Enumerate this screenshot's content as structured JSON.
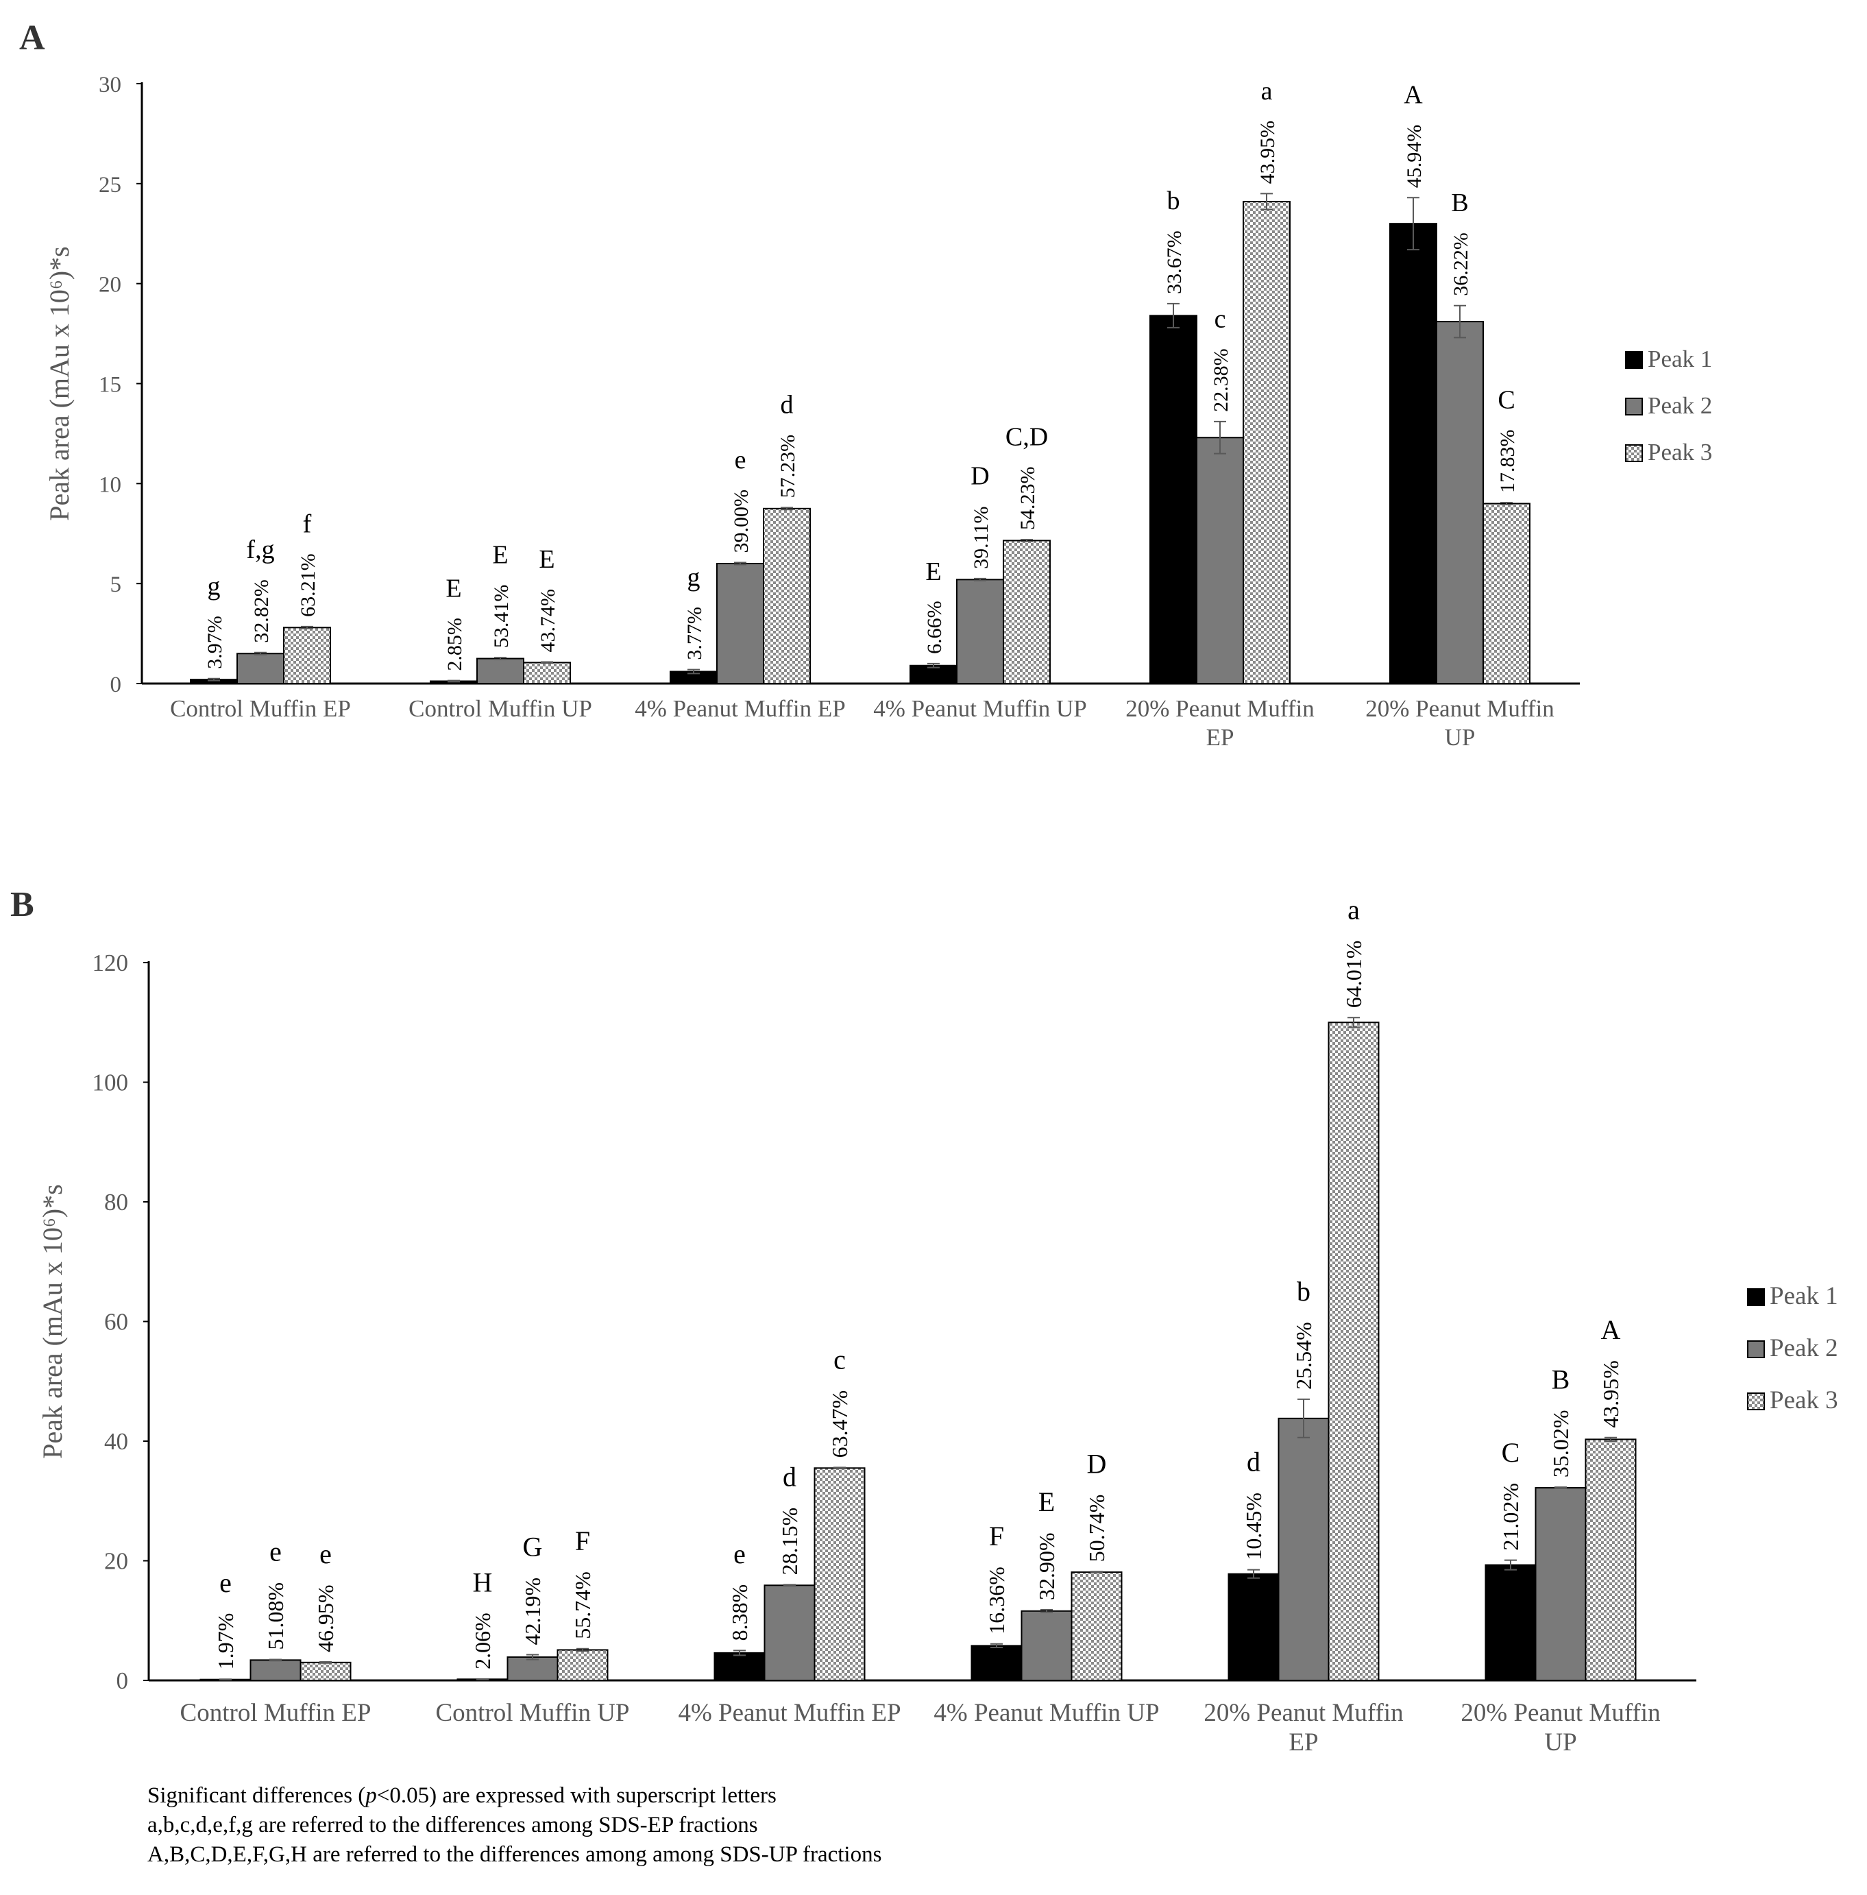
{
  "colors": {
    "peak1": "#000000",
    "peak2": "#7a7a7a",
    "peak3_light": "#ffffff",
    "peak3_dark": "#8a8a8a",
    "axis": "#000000",
    "tick_text": "#595959",
    "error_bar": "#595959"
  },
  "chart_data": [
    {
      "panel": "A",
      "type": "bar",
      "ylabel": "Peak area (mAu x 10⁶)*s",
      "ylim": [
        0,
        30
      ],
      "ytick_step": 5,
      "ytick_labels": [
        "0",
        "5",
        "10",
        "15",
        "20",
        "25",
        "30"
      ],
      "categories": [
        [
          "Control Muffin EP"
        ],
        [
          "Control Muffin UP"
        ],
        [
          "4% Peanut Muffin EP"
        ],
        [
          "4% Peanut Muffin UP"
        ],
        [
          "20% Peanut Muffin",
          "EP"
        ],
        [
          "20% Peanut Muffin",
          "UP"
        ]
      ],
      "legend": [
        "Peak 1",
        "Peak 2",
        "Peak 3"
      ],
      "legend_position": "right",
      "series": [
        {
          "name": "Peak 1",
          "values": [
            0.2,
            0.12,
            0.6,
            0.9,
            18.4,
            23.0
          ],
          "errors": [
            0.05,
            0.03,
            0.1,
            0.1,
            0.6,
            1.3
          ],
          "pct_labels": [
            "3.97%",
            "2.85%",
            "3.77%",
            "6.66%",
            "33.67%",
            "45.94%"
          ],
          "sig_letters": [
            "g",
            "E",
            "g",
            "E",
            "b",
            "A"
          ]
        },
        {
          "name": "Peak 2",
          "values": [
            1.5,
            1.25,
            6.0,
            5.2,
            12.3,
            18.1
          ],
          "errors": [
            0.05,
            0.05,
            0.05,
            0.05,
            0.8,
            0.8
          ],
          "pct_labels": [
            "32.82%",
            "53.41%",
            "39.00%",
            "39.11%",
            "22.38%",
            "36.22%"
          ],
          "sig_letters": [
            "f,g",
            "E",
            "e",
            "D",
            "c",
            "B"
          ]
        },
        {
          "name": "Peak 3",
          "values": [
            2.8,
            1.05,
            8.75,
            7.15,
            24.1,
            9.0
          ],
          "errors": [
            0.05,
            0.03,
            0.05,
            0.05,
            0.4,
            0.05
          ],
          "pct_labels": [
            "63.21%",
            "43.74%",
            "57.23%",
            "54.23%",
            "43.95%",
            "17.83%"
          ],
          "sig_letters": [
            "f",
            "E",
            "d",
            "C,D",
            "a",
            "C"
          ]
        }
      ]
    },
    {
      "panel": "B",
      "type": "bar",
      "ylabel": "Peak area (mAu x 10⁶)*s",
      "ylim": [
        0,
        120
      ],
      "ytick_step": 20,
      "ytick_labels": [
        "0",
        "20",
        "40",
        "60",
        "80",
        "100",
        "120"
      ],
      "categories": [
        [
          "Control Muffin EP"
        ],
        [
          "Control Muffin UP"
        ],
        [
          "4% Peanut Muffin EP"
        ],
        [
          "4% Peanut Muffin UP"
        ],
        [
          "20% Peanut Muffin",
          "EP"
        ],
        [
          "20% Peanut Muffin",
          "UP"
        ]
      ],
      "legend": [
        "Peak 1",
        "Peak 2",
        "Peak 3"
      ],
      "legend_position": "right",
      "series": [
        {
          "name": "Peak 1",
          "values": [
            0.15,
            0.2,
            4.6,
            5.8,
            17.8,
            19.3
          ],
          "errors": [
            0.05,
            0.05,
            0.4,
            0.3,
            0.7,
            0.8
          ],
          "pct_labels": [
            "1.97%",
            "2.06%",
            "8.38%",
            "16.36%",
            "10.45%",
            "21.02%"
          ],
          "sig_letters": [
            "e",
            "H",
            "e",
            "F",
            "d",
            "C"
          ]
        },
        {
          "name": "Peak 2",
          "values": [
            3.4,
            3.9,
            15.9,
            11.6,
            43.8,
            32.2
          ],
          "errors": [
            0.1,
            0.4,
            0.1,
            0.2,
            3.2,
            0.1
          ],
          "pct_labels": [
            "51.08%",
            "42.19%",
            "28.15%",
            "32.90%",
            "25.54%",
            "35.02%"
          ],
          "sig_letters": [
            "e",
            "G",
            "d",
            "E",
            "b",
            "B"
          ]
        },
        {
          "name": "Peak 3",
          "values": [
            3.0,
            5.1,
            35.5,
            18.1,
            110.0,
            40.3
          ],
          "errors": [
            0.1,
            0.2,
            0.1,
            0.1,
            0.8,
            0.3
          ],
          "pct_labels": [
            "46.95%",
            "55.74%",
            "63.47%",
            "50.74%",
            "64.01%",
            "43.95%"
          ],
          "sig_letters": [
            "e",
            "F",
            "c",
            "D",
            "a",
            "A"
          ]
        }
      ]
    }
  ],
  "footnote": {
    "line1_pre": "Significant differences (",
    "line1_italic": "p",
    "line1_post": "<0.05) are expressed with superscript letters",
    "line2": "a,b,c,d,e,f,g are referred to the differences among SDS-EP fractions",
    "line3": "A,B,C,D,E,F,G,H are referred to the differences among among SDS-UP fractions"
  }
}
